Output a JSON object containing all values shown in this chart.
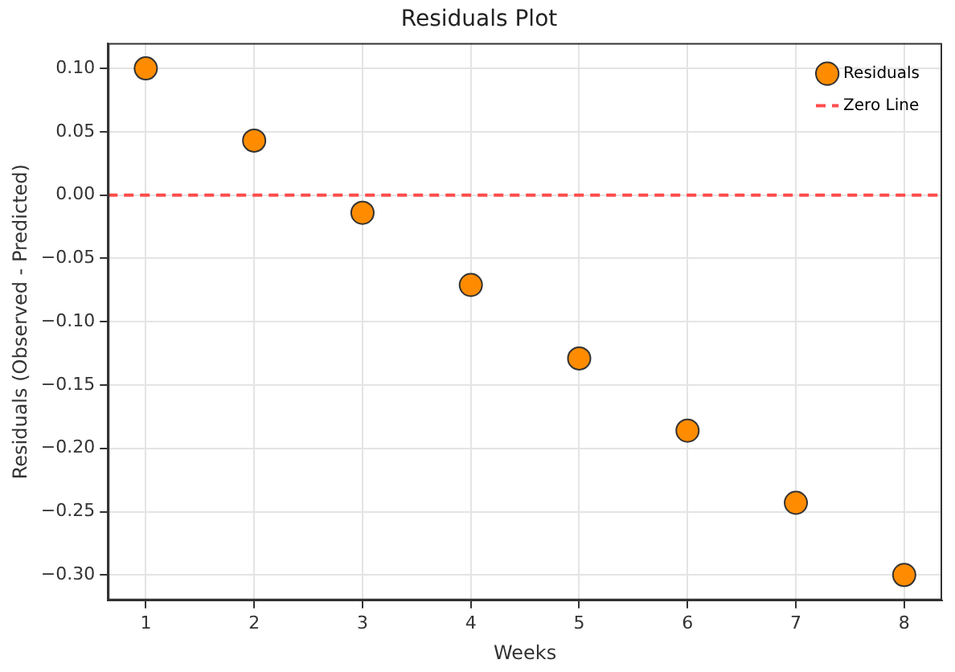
{
  "chart_data": {
    "type": "scatter",
    "title": "Residuals Plot",
    "xlabel": "Weeks",
    "ylabel": "Residuals (Observed - Predicted)",
    "x": [
      1,
      2,
      3,
      4,
      5,
      6,
      7,
      8
    ],
    "series": [
      {
        "name": "Residuals",
        "color": "#ff8c00",
        "values": [
          0.1,
          0.043,
          -0.014,
          -0.071,
          -0.129,
          -0.186,
          -0.243,
          -0.3
        ]
      }
    ],
    "ref_lines": [
      {
        "axis": "y",
        "value": 0,
        "label": "Zero Line",
        "color": "#ff4c4c",
        "line_style": "dashed"
      }
    ],
    "xlim": [
      0.65,
      8.35
    ],
    "xticks": [
      1,
      2,
      3,
      4,
      5,
      6,
      7,
      8
    ],
    "ylim": [
      -0.32,
      0.12
    ],
    "yticks": [
      {
        "value": -0.3,
        "label": "−0.30"
      },
      {
        "value": -0.25,
        "label": "−0.25"
      },
      {
        "value": -0.2,
        "label": "−0.20"
      },
      {
        "value": -0.15,
        "label": "−0.15"
      },
      {
        "value": -0.1,
        "label": "−0.10"
      },
      {
        "value": -0.05,
        "label": "−0.05"
      },
      {
        "value": 0,
        "label": "0.00"
      },
      {
        "value": 0.05,
        "label": "0.05"
      },
      {
        "value": 0.1,
        "label": "0.10"
      }
    ],
    "grid": true,
    "legend": "top right",
    "marker": "circle"
  }
}
